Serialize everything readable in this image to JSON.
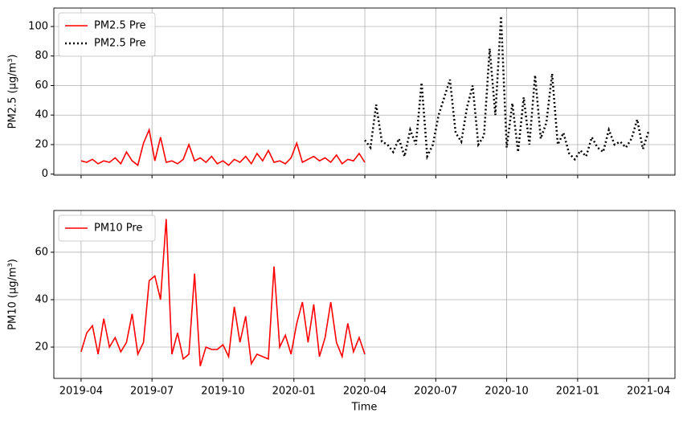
{
  "chart_data": [
    {
      "type": "line",
      "ylabel": "PM2.5 (μg/m³)",
      "grid": true,
      "legend": "upper left",
      "sharex": true,
      "x": [
        2019.25,
        2019.27,
        2019.29,
        2019.31,
        2019.33,
        2019.35,
        2019.37,
        2019.39,
        2019.41,
        2019.43,
        2019.45,
        2019.47,
        2019.49,
        2019.51,
        2019.53,
        2019.55,
        2019.57,
        2019.59,
        2019.61,
        2019.63,
        2019.65,
        2019.67,
        2019.69,
        2019.71,
        2019.73,
        2019.75,
        2019.77,
        2019.79,
        2019.81,
        2019.83,
        2019.85,
        2019.87,
        2019.89,
        2019.91,
        2019.93,
        2019.95,
        2019.97,
        2019.99,
        2020.01,
        2020.03,
        2020.05,
        2020.07,
        2020.09,
        2020.11,
        2020.13,
        2020.15,
        2020.17,
        2020.19,
        2020.21,
        2020.23,
        2020.25,
        2020.27,
        2020.29,
        2020.31,
        2020.33,
        2020.35,
        2020.37,
        2020.39,
        2020.41,
        2020.43,
        2020.45,
        2020.47,
        2020.49,
        2020.51,
        2020.53,
        2020.55,
        2020.57,
        2020.59,
        2020.61,
        2020.63,
        2020.65,
        2020.67,
        2020.69,
        2020.71,
        2020.73,
        2020.75,
        2020.77,
        2020.79,
        2020.81,
        2020.83,
        2020.85,
        2020.87,
        2020.89,
        2020.91,
        2020.93,
        2020.95,
        2020.97,
        2020.99,
        2021.01,
        2021.03,
        2021.05,
        2021.07,
        2021.09,
        2021.11,
        2021.13,
        2021.15,
        2021.17,
        2021.19,
        2021.21,
        2021.23,
        2021.25
      ],
      "xlim": [
        2019.154,
        2021.343
      ],
      "ylim": [
        -0.7,
        112.5
      ],
      "yticks": [
        0,
        20,
        40,
        60,
        80,
        100
      ],
      "series": [
        {
          "name": "PM2.5 Pre",
          "color": "#ff0000",
          "linestyle": "solid",
          "values": [
            9,
            8,
            10,
            7,
            9,
            8,
            11,
            7,
            15,
            9,
            6,
            21,
            30,
            9,
            25,
            8,
            9,
            7,
            10,
            20,
            9,
            11,
            8,
            12,
            7,
            9,
            6,
            10,
            8,
            12,
            7,
            14,
            9,
            16,
            8,
            9,
            7,
            11,
            21,
            8,
            10,
            12,
            9,
            11,
            8,
            13,
            7,
            10,
            9,
            14,
            8,
            null,
            null,
            null,
            null,
            null,
            null,
            null,
            null,
            null,
            null,
            null,
            null,
            null,
            null,
            null,
            null,
            null,
            null,
            null,
            null,
            null,
            null,
            null,
            null,
            null,
            null,
            null,
            null,
            null,
            null,
            null,
            null,
            null,
            null,
            null,
            null,
            null,
            null,
            null,
            null,
            null,
            null,
            null,
            null,
            null,
            null,
            null,
            null,
            null,
            null
          ]
        },
        {
          "name": "PM2.5 Pre",
          "color": "#000000",
          "linestyle": "dotted",
          "values": [
            null,
            null,
            null,
            null,
            null,
            null,
            null,
            null,
            null,
            null,
            null,
            null,
            null,
            null,
            null,
            null,
            null,
            null,
            null,
            null,
            null,
            null,
            null,
            null,
            null,
            null,
            null,
            null,
            null,
            null,
            null,
            null,
            null,
            null,
            null,
            null,
            null,
            null,
            null,
            null,
            null,
            null,
            null,
            null,
            null,
            null,
            null,
            null,
            null,
            null,
            23,
            18,
            47,
            22,
            20,
            15,
            24,
            12,
            30,
            20,
            62,
            12,
            20,
            40,
            52,
            64,
            28,
            22,
            45,
            60,
            20,
            26,
            85,
            40,
            107,
            18,
            48,
            15,
            52,
            20,
            67,
            24,
            35,
            68,
            20,
            28,
            14,
            10,
            16,
            12,
            25,
            18,
            15,
            30,
            20,
            22,
            18,
            24,
            37,
            17,
            29
          ]
        }
      ]
    },
    {
      "type": "line",
      "ylabel": "PM10 (μg/m³)",
      "xlabel": "Time",
      "grid": true,
      "legend": "upper left",
      "x": [
        2019.25,
        2019.27,
        2019.29,
        2019.31,
        2019.33,
        2019.35,
        2019.37,
        2019.39,
        2019.41,
        2019.43,
        2019.45,
        2019.47,
        2019.49,
        2019.51,
        2019.53,
        2019.55,
        2019.57,
        2019.59,
        2019.61,
        2019.63,
        2019.65,
        2019.67,
        2019.69,
        2019.71,
        2019.73,
        2019.75,
        2019.77,
        2019.79,
        2019.81,
        2019.83,
        2019.85,
        2019.87,
        2019.89,
        2019.91,
        2019.93,
        2019.95,
        2019.97,
        2019.99,
        2020.01,
        2020.03,
        2020.05,
        2020.07,
        2020.09,
        2020.11,
        2020.13,
        2020.15,
        2020.17,
        2020.19,
        2020.21,
        2020.23,
        2020.25
      ],
      "xlim": [
        2019.154,
        2021.343
      ],
      "ylim": [
        6.8,
        77.6
      ],
      "yticks": [
        20,
        40,
        60
      ],
      "xticks": [
        {
          "value": 2019.25,
          "label": "2019-04"
        },
        {
          "value": 2019.5,
          "label": "2019-07"
        },
        {
          "value": 2019.75,
          "label": "2019-10"
        },
        {
          "value": 2020.0,
          "label": "2020-01"
        },
        {
          "value": 2020.25,
          "label": "2020-04"
        },
        {
          "value": 2020.5,
          "label": "2020-07"
        },
        {
          "value": 2020.75,
          "label": "2020-10"
        },
        {
          "value": 2021.0,
          "label": "2021-01"
        },
        {
          "value": 2021.25,
          "label": "2021-04"
        }
      ],
      "series": [
        {
          "name": "PM10 Pre",
          "color": "#ff0000",
          "linestyle": "solid",
          "values": [
            18,
            26,
            29,
            17,
            32,
            20,
            24,
            18,
            22,
            34,
            17,
            22,
            48,
            50,
            40,
            74,
            17,
            26,
            15,
            17,
            51,
            12,
            20,
            19,
            19,
            21,
            16,
            37,
            22,
            33,
            13,
            17,
            16,
            15,
            54,
            20,
            25,
            17,
            30,
            39,
            22,
            38,
            16,
            24,
            39,
            22,
            16,
            30,
            18,
            24,
            17
          ]
        }
      ]
    }
  ]
}
